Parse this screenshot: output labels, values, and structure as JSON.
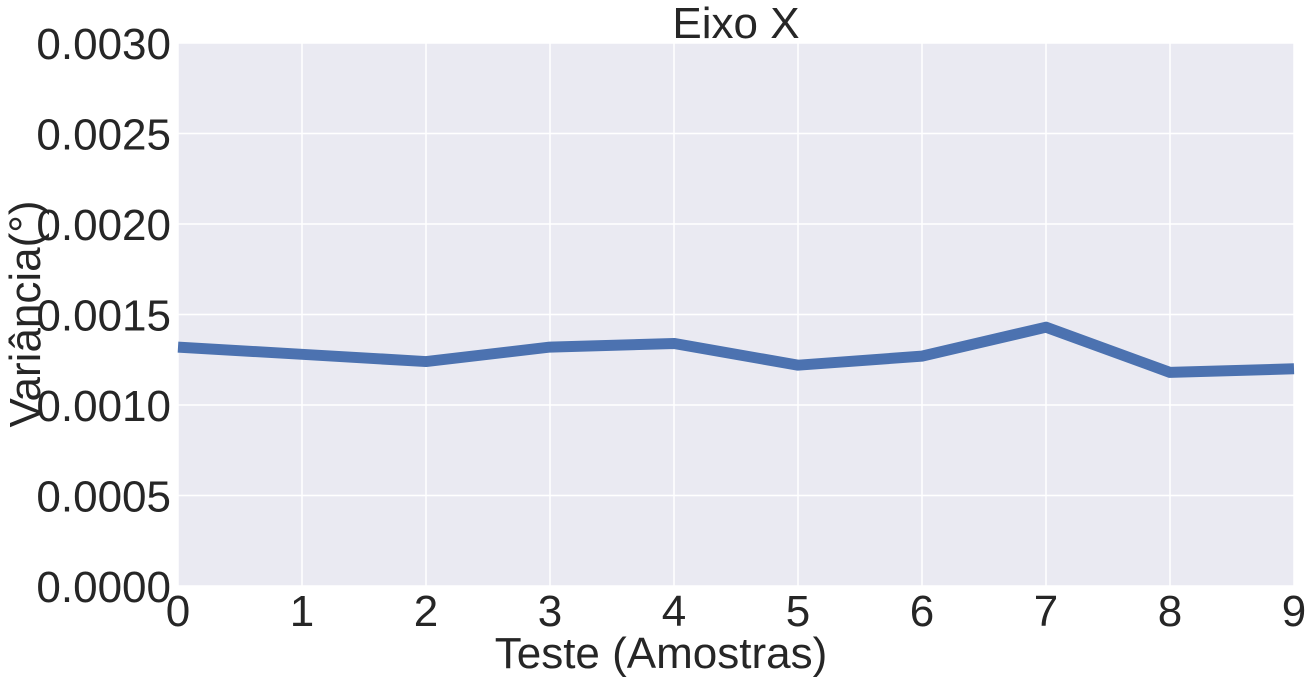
{
  "chart_data": {
    "type": "line",
    "title": "Eixo X",
    "xlabel": "Teste (Amostras)",
    "ylabel": "Variância(°)",
    "x": [
      0,
      1,
      2,
      3,
      4,
      5,
      6,
      7,
      8,
      9
    ],
    "series": [
      {
        "values": [
          0.00132,
          0.00128,
          0.00124,
          0.00132,
          0.00134,
          0.00122,
          0.00127,
          0.00143,
          0.00118,
          0.0012
        ]
      }
    ],
    "xlim": [
      0,
      9
    ],
    "ylim": [
      0,
      0.003
    ],
    "xticks": [
      0,
      1,
      2,
      3,
      4,
      5,
      6,
      7,
      8,
      9
    ],
    "xtick_labels": [
      "0",
      "1",
      "2",
      "3",
      "4",
      "5",
      "6",
      "7",
      "8",
      "9"
    ],
    "yticks": [
      0,
      0.0005,
      0.001,
      0.0015,
      0.002,
      0.0025,
      0.003
    ],
    "ytick_labels": [
      "0.0000",
      "0.0005",
      "0.0010",
      "0.0015",
      "0.0020",
      "0.0025",
      "0.0030"
    ],
    "grid": true,
    "legend": "none",
    "colors": {
      "plot_background": "#eaeaf2",
      "grid": "#ffffff",
      "line": "#4c72b0",
      "text": "#262626"
    }
  }
}
